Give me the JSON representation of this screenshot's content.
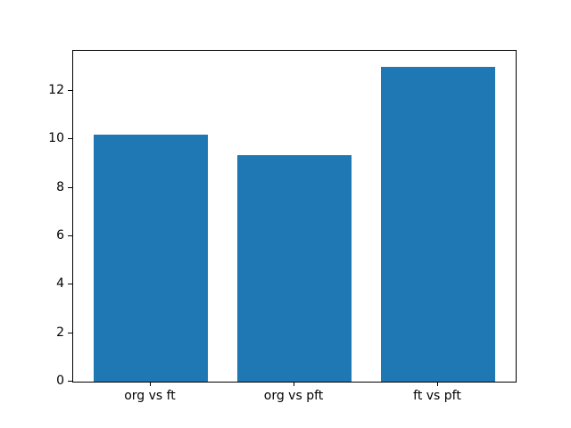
{
  "figure": {
    "background_color": "#ffffff",
    "frame_color": "#000000",
    "title": ""
  },
  "chart_data": {
    "type": "bar",
    "categories": [
      "org vs ft",
      "org vs pft",
      "ft vs pft"
    ],
    "values": [
      10.2,
      9.35,
      13.0
    ],
    "title": "",
    "xlabel": "",
    "ylabel": "",
    "ylim": [
      0,
      13.65
    ],
    "xlim": [
      -0.54,
      2.54
    ],
    "yticks": [
      0,
      2,
      4,
      6,
      8,
      10,
      12
    ],
    "bar_width": 0.8,
    "bar_color": "#1f77b4",
    "grid": false,
    "legend": null
  }
}
